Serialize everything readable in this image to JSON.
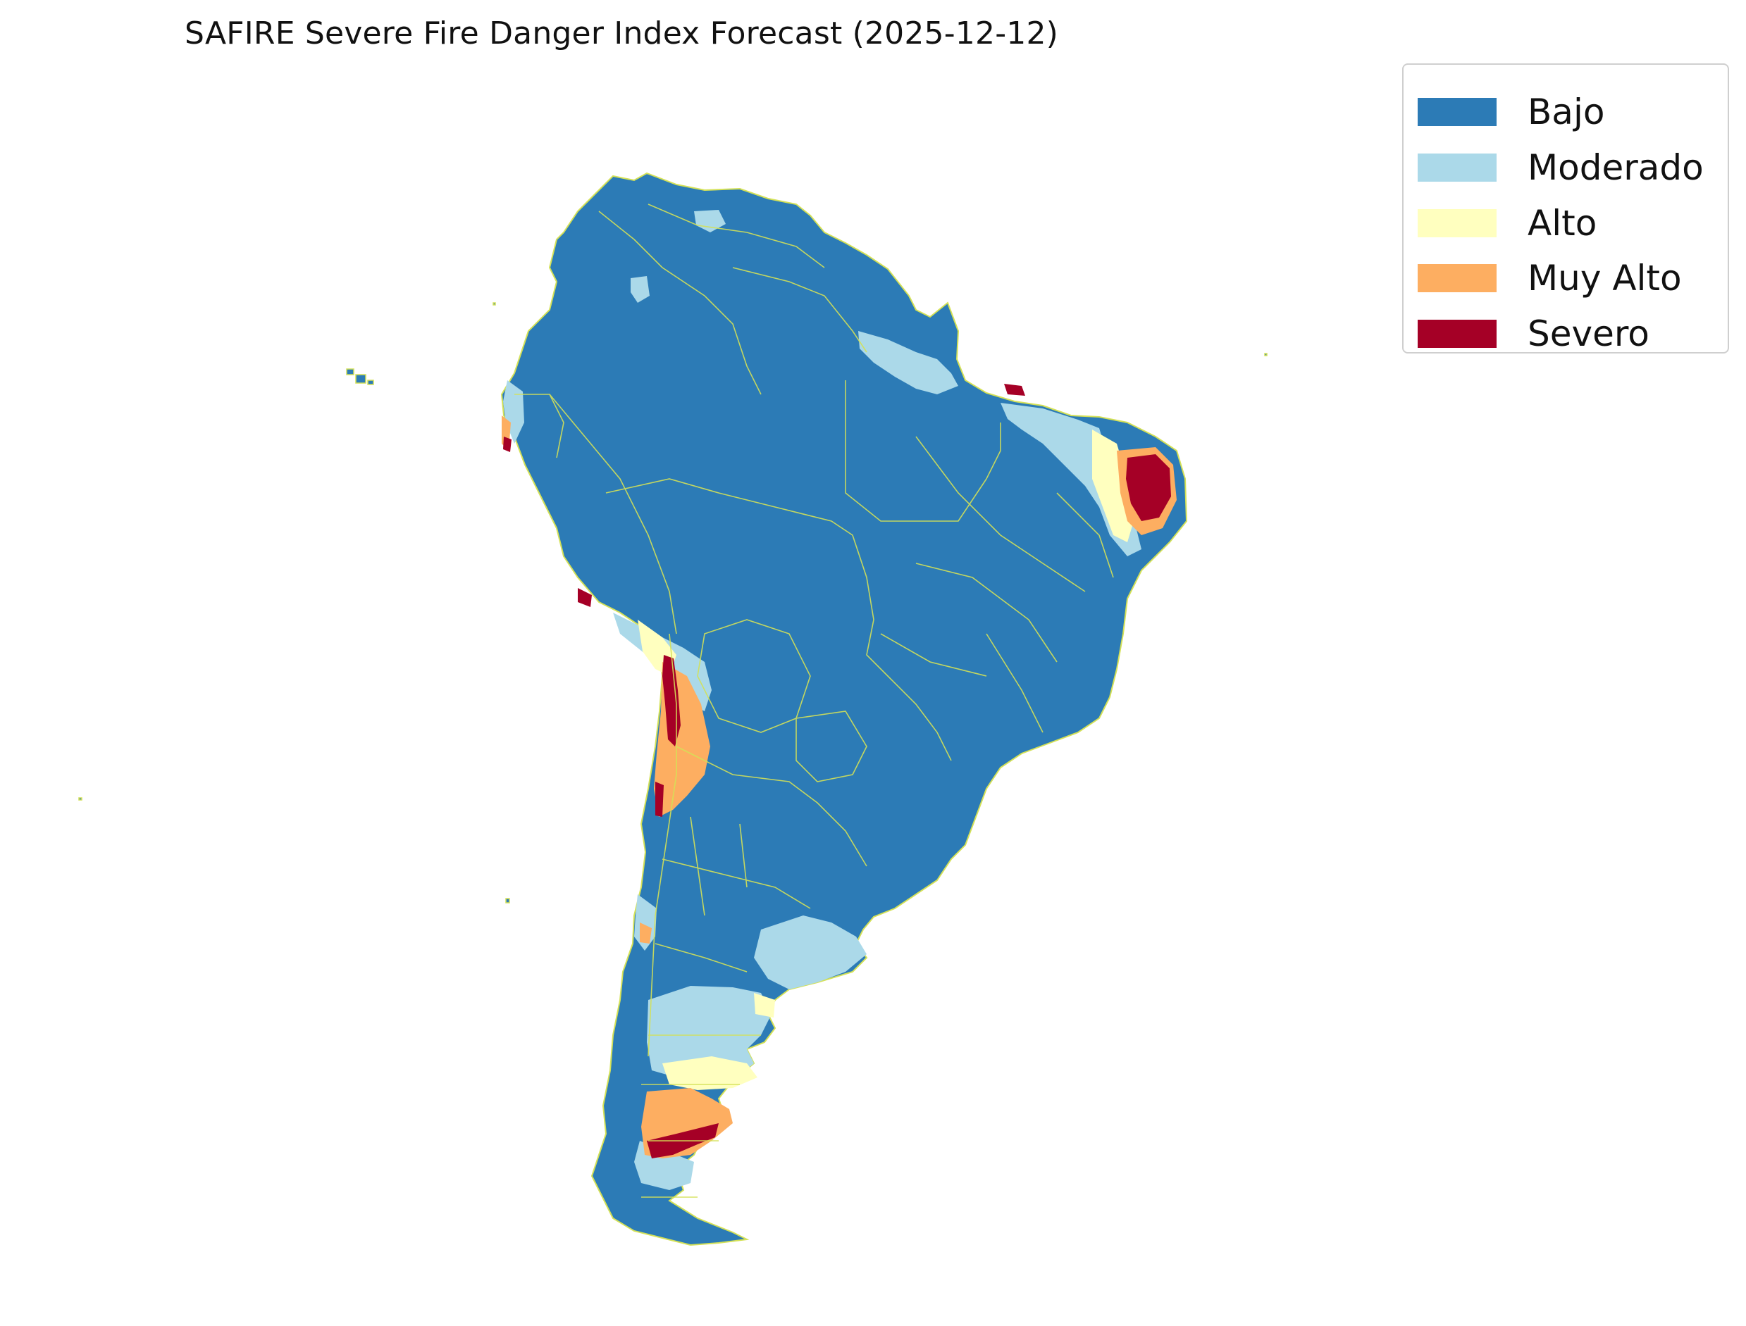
{
  "title": "SAFIRE Severe Fire Danger Index Forecast (2025-12-12)",
  "legend": {
    "items": [
      {
        "label": "Bajo",
        "color": "#2c7bb6"
      },
      {
        "label": "Moderado",
        "color": "#abd9e9"
      },
      {
        "label": "Alto",
        "color": "#ffffbf"
      },
      {
        "label": "Muy Alto",
        "color": "#fdae61"
      },
      {
        "label": "Severo",
        "color": "#a50026"
      }
    ]
  },
  "map": {
    "region": "South America",
    "border_color": "#d4e157",
    "background_color": "#ffffff"
  }
}
